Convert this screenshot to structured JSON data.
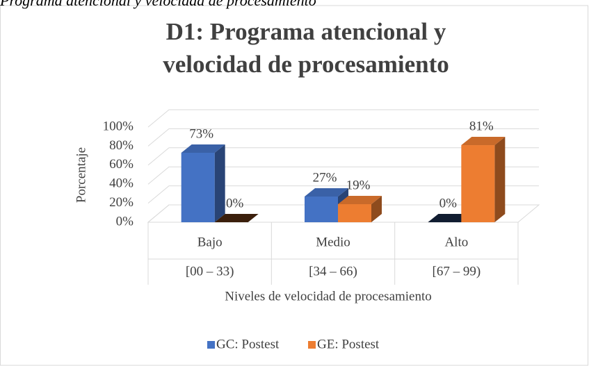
{
  "caption": "Programa atencional y velocidad de procesamiento",
  "chart_data": {
    "type": "bar3d",
    "title": "D1: Programa atencional y velocidad de procesamiento",
    "categories": [
      "Bajo",
      "Medio",
      "Alto"
    ],
    "category_ranges": [
      "[00 – 33)",
      "[34 – 66)",
      "[67 – 99)"
    ],
    "series": [
      {
        "name": "GC: Postest",
        "color": "#4472c4",
        "values": [
          73,
          27,
          0
        ],
        "value_labels": [
          "73%",
          "27%",
          "0%"
        ]
      },
      {
        "name": "GE: Postest",
        "color": "#ed7d31",
        "values": [
          0,
          19,
          81
        ],
        "value_labels": [
          "0%",
          "19%",
          "81%"
        ]
      }
    ],
    "ylim": [
      0,
      100
    ],
    "yticks": [
      {
        "value": 0,
        "label": "0%"
      },
      {
        "value": 20,
        "label": "20%"
      },
      {
        "value": 40,
        "label": "40%"
      },
      {
        "value": 60,
        "label": "60%"
      },
      {
        "value": 80,
        "label": "80%"
      },
      {
        "value": 100,
        "label": "100%"
      }
    ],
    "ylabel": "Porcentaje",
    "xlabel": "Niveles de velocidad de procesamiento",
    "grid": true,
    "legend": "bottom"
  }
}
